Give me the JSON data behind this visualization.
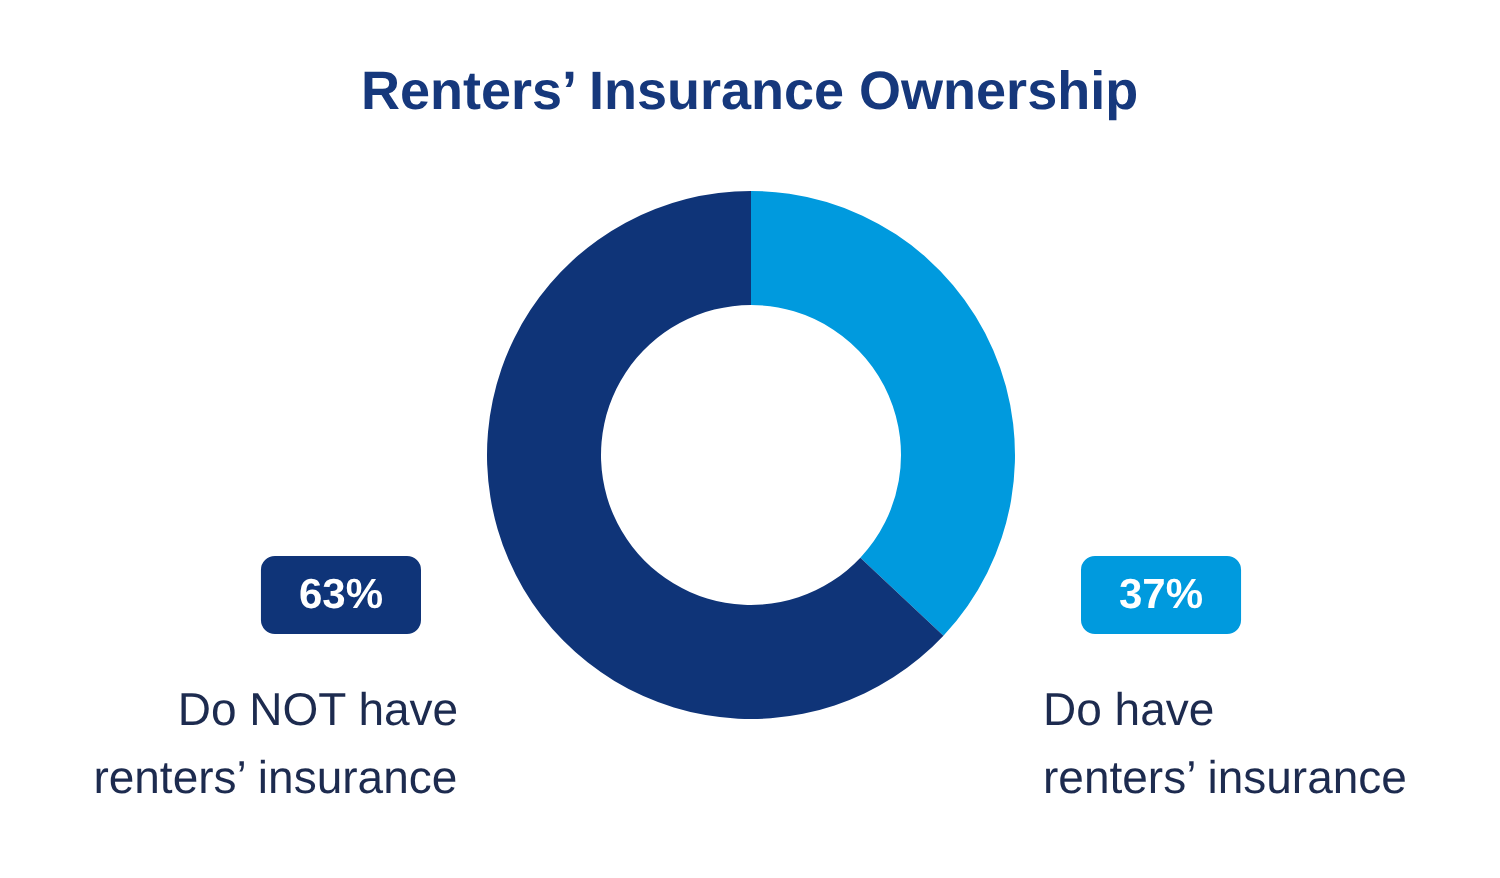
{
  "chart_data": {
    "type": "donut",
    "title": "Renters’ Insurance Ownership",
    "categories": [
      "Do have\nrenters’ insurance",
      "Do NOT have\nrenters’ insurance"
    ],
    "values": [
      37,
      63
    ],
    "colors": [
      "#009ade",
      "#0f3478"
    ],
    "value_labels": [
      "37%",
      "63%"
    ],
    "legend": "bottom"
  }
}
